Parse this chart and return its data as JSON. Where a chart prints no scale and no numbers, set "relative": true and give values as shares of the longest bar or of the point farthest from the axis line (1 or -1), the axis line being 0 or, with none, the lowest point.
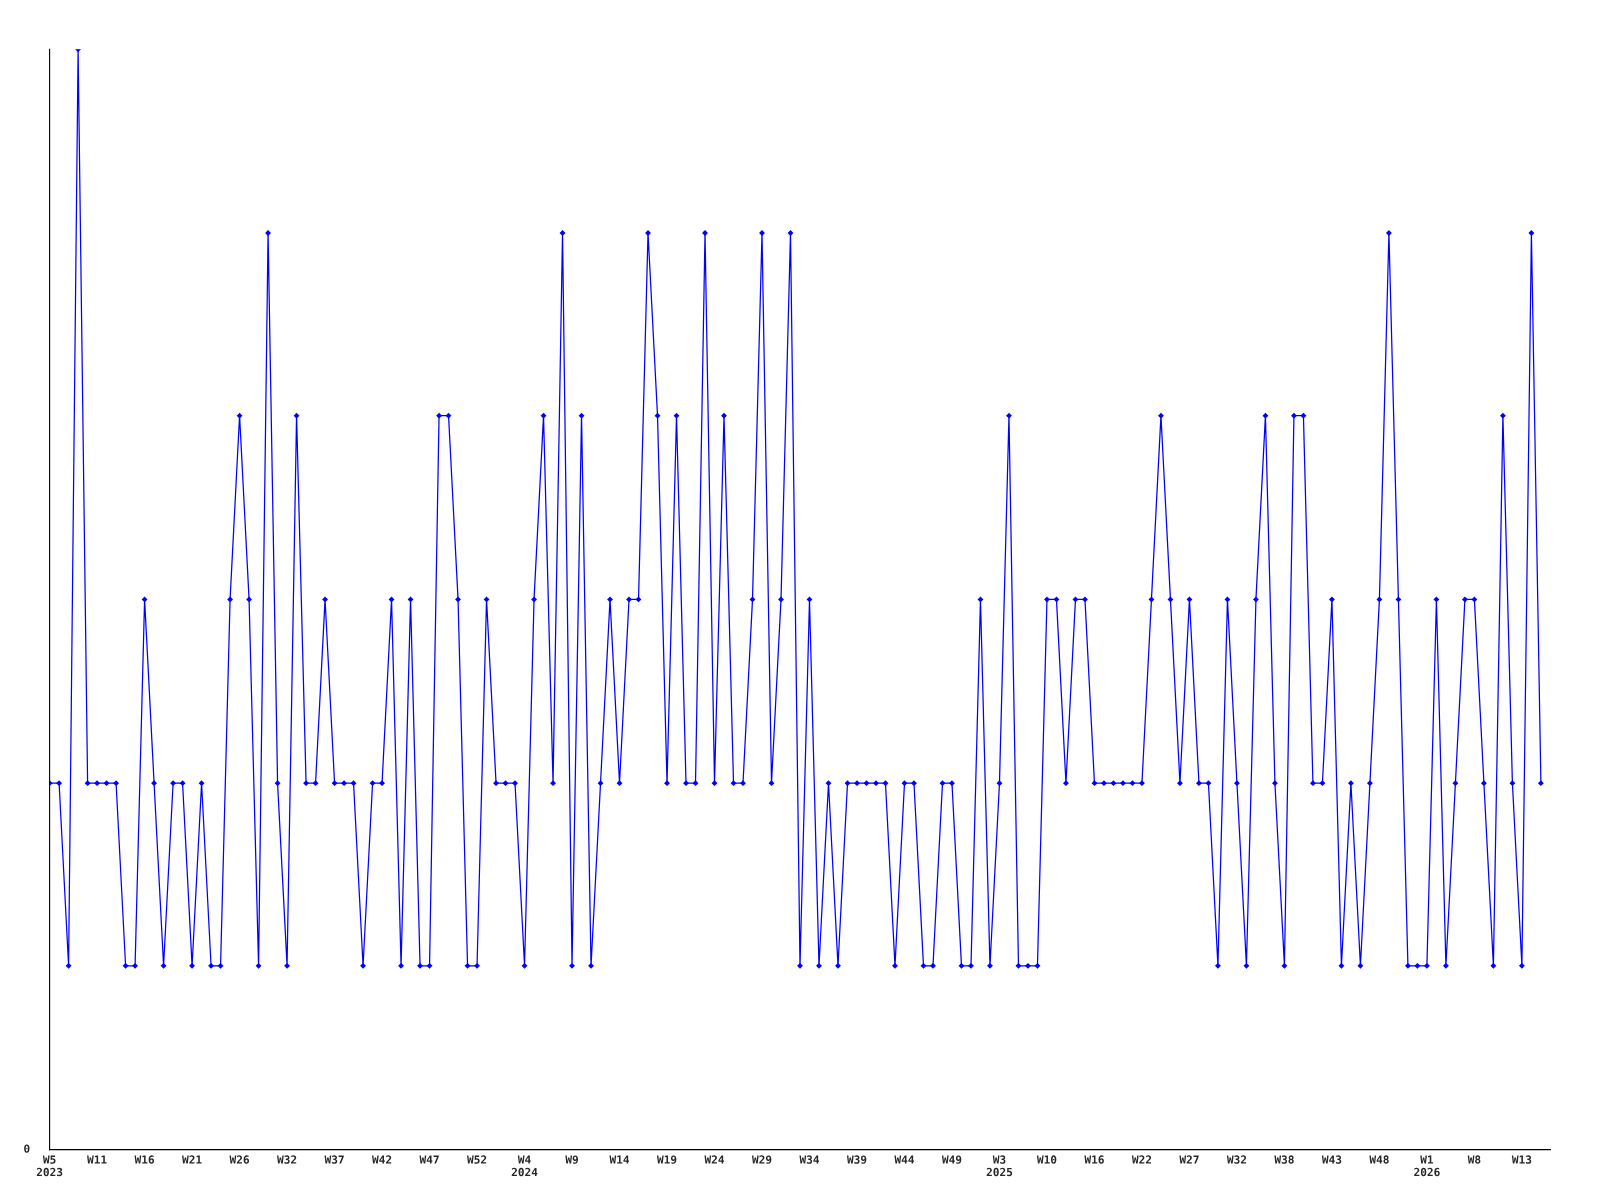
{
  "chart_data": {
    "type": "line",
    "relative": true,
    "marker": "diamond",
    "line_style": "solid",
    "grid": false,
    "legend": false,
    "categories": [
      "W5\n2023",
      null,
      null,
      null,
      null,
      "W11",
      null,
      null,
      null,
      null,
      "W16",
      null,
      null,
      null,
      null,
      "W21",
      null,
      null,
      null,
      null,
      "W26",
      null,
      null,
      null,
      null,
      "W32",
      null,
      null,
      null,
      null,
      "W37",
      null,
      null,
      null,
      null,
      "W42",
      null,
      null,
      null,
      null,
      "W47",
      null,
      null,
      null,
      null,
      "W52",
      null,
      null,
      null,
      null,
      "W4\n2024",
      null,
      null,
      null,
      null,
      "W9",
      null,
      null,
      null,
      null,
      "W14",
      null,
      null,
      null,
      null,
      "W19",
      null,
      null,
      null,
      null,
      "W24",
      null,
      null,
      null,
      null,
      "W29",
      null,
      null,
      null,
      null,
      "W34",
      null,
      null,
      null,
      null,
      "W39",
      null,
      null,
      null,
      null,
      "W44",
      null,
      null,
      null,
      null,
      "W49",
      null,
      null,
      null,
      null,
      "W3\n2025",
      null,
      null,
      null,
      null,
      "W10",
      null,
      null,
      null,
      null,
      "W16",
      null,
      null,
      null,
      null,
      "W22",
      null,
      null,
      null,
      null,
      "W27",
      null,
      null,
      null,
      null,
      "W32",
      null,
      null,
      null,
      null,
      "W38",
      null,
      null,
      null,
      null,
      "W43",
      null,
      null,
      null,
      null,
      "W48",
      null,
      null,
      null,
      null,
      "W1\n2026",
      null,
      null,
      null,
      null,
      "W8",
      null,
      null,
      null,
      null,
      "W13",
      null,
      null
    ],
    "series": [
      {
        "color": "#0000ff",
        "values": [
          0.333,
          0.333,
          0.167,
          1,
          0.333,
          0.333,
          0.333,
          0.333,
          0.167,
          0.167,
          0.5,
          0.333,
          0.167,
          0.333,
          0.333,
          0.167,
          0.333,
          0.167,
          0.167,
          0.5,
          0.667,
          0.5,
          0.167,
          0.833,
          0.333,
          0.167,
          0.667,
          0.333,
          0.333,
          0.5,
          0.333,
          0.333,
          0.333,
          0.167,
          0.333,
          0.333,
          0.5,
          0.167,
          0.5,
          0.167,
          0.167,
          0.667,
          0.667,
          0.5,
          0.167,
          0.167,
          0.5,
          0.333,
          0.333,
          0.333,
          0.167,
          0.5,
          0.667,
          0.333,
          0.833,
          0.167,
          0.667,
          0.167,
          0.333,
          0.5,
          0.333,
          0.5,
          0.5,
          0.833,
          0.667,
          0.333,
          0.667,
          0.333,
          0.333,
          0.833,
          0.333,
          0.667,
          0.333,
          0.333,
          0.5,
          0.833,
          0.333,
          0.5,
          0.833,
          0.167,
          0.5,
          0.167,
          0.333,
          0.167,
          0.333,
          0.333,
          0.333,
          0.333,
          0.333,
          0.167,
          0.333,
          0.333,
          0.167,
          0.167,
          0.333,
          0.333,
          0.167,
          0.167,
          0.5,
          0.167,
          0.333,
          0.667,
          0.167,
          0.167,
          0.167,
          0.5,
          0.5,
          0.333,
          0.5,
          0.5,
          0.333,
          0.333,
          0.333,
          0.333,
          0.333,
          0.333,
          0.5,
          0.667,
          0.5,
          0.333,
          0.5,
          0.333,
          0.333,
          0.167,
          0.5,
          0.333,
          0.167,
          0.5,
          0.667,
          0.333,
          0.167,
          0.667,
          0.667,
          0.333,
          0.333,
          0.5,
          0.167,
          0.333,
          0.167,
          0.333,
          0.5,
          0.833,
          0.5,
          0.167,
          0.167,
          0.167,
          0.5,
          0.167,
          0.333,
          0.5,
          0.5,
          0.333,
          0.167,
          0.667,
          0.333,
          0.167,
          0.833,
          0.333
        ]
      }
    ],
    "annotations": [
      "0"
    ]
  }
}
